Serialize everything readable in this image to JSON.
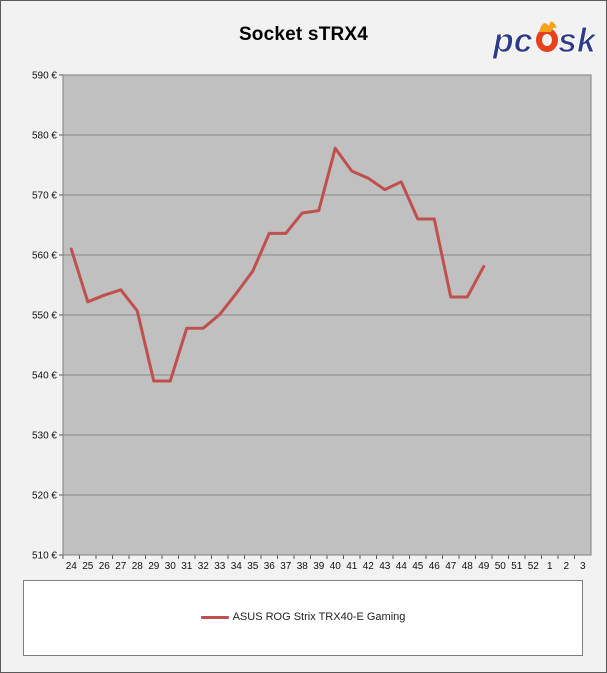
{
  "chart_data": {
    "type": "line",
    "title": "Socket sTRX4",
    "xlabel": "",
    "ylabel": "",
    "ylim": [
      510,
      590
    ],
    "y_ticks": [
      "510 €",
      "520 €",
      "530 €",
      "540 €",
      "550 €",
      "560 €",
      "570 €",
      "580 €",
      "590 €"
    ],
    "y_tick_values": [
      510,
      520,
      530,
      540,
      550,
      560,
      570,
      580,
      590
    ],
    "categories": [
      "24",
      "25",
      "26",
      "27",
      "28",
      "29",
      "30",
      "31",
      "32",
      "33",
      "34",
      "35",
      "36",
      "37",
      "38",
      "39",
      "40",
      "41",
      "42",
      "43",
      "44",
      "45",
      "46",
      "47",
      "48",
      "49",
      "50",
      "51",
      "52",
      "1",
      "2",
      "3"
    ],
    "grid": true,
    "legend_position": "bottom",
    "series": [
      {
        "name": "ASUS ROG Strix TRX40-E Gaming",
        "color": "#c0504d",
        "values": [
          561,
          552.2,
          553.3,
          554.2,
          550.7,
          539,
          539,
          547.8,
          547.8,
          550.1,
          553.6,
          557.3,
          563.6,
          563.6,
          567,
          567.4,
          577.8,
          574,
          572.8,
          570.9,
          572.2,
          566,
          566,
          553,
          553,
          558.1,
          null,
          null,
          null,
          null,
          null,
          null
        ]
      }
    ]
  },
  "logo": {
    "text_left": "pc",
    "text_right": "sk",
    "icon": "flame-o-icon",
    "colors": [
      "#2e3b8c",
      "#f7a21b",
      "#e8401c"
    ]
  }
}
